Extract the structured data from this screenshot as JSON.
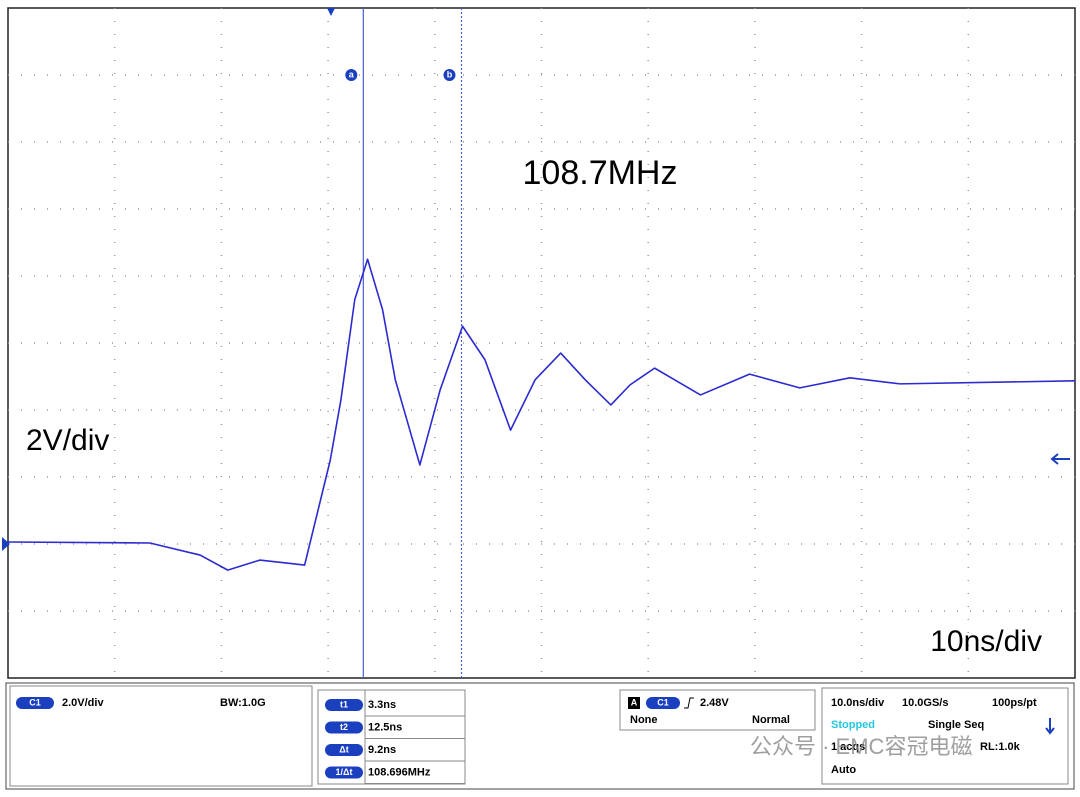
{
  "chart_data": {
    "type": "line",
    "grid": true,
    "color": "#2b2bd0",
    "x": [
      -30,
      -16.7,
      -12,
      -9.4,
      -6.4,
      -2.2,
      0.2,
      1.2,
      2.5,
      3.7,
      5.1,
      6.3,
      8.6,
      10.5,
      12.6,
      14.7,
      17.1,
      19.4,
      21.8,
      24.1,
      26.5,
      28.3,
      30.6,
      34.9,
      39.5,
      44.2,
      48.9,
      53.6,
      70
    ],
    "values": [
      0.06,
      0.03,
      -0.33,
      -0.78,
      -0.48,
      -0.63,
      2.5,
      4.3,
      7.3,
      8.5,
      7.0,
      4.9,
      2.36,
      4.6,
      6.5,
      5.5,
      3.4,
      4.9,
      5.7,
      4.9,
      4.15,
      4.75,
      5.25,
      4.45,
      5.07,
      4.66,
      4.96,
      4.78,
      4.87
    ],
    "xlim": [
      -30,
      70
    ],
    "ylim": [
      -4,
      16
    ],
    "cursors": [
      {
        "marker": "a",
        "name": "t1",
        "value": 3.3,
        "label": "3.3ns"
      },
      {
        "marker": "b",
        "name": "t2",
        "value": 12.5,
        "label": "12.5ns"
      }
    ],
    "delta": {
      "name": "Δt",
      "value": 9.2,
      "label": "9.2ns"
    },
    "inverse": {
      "name": "1/Δt",
      "value": 108.696,
      "label": "108.696MHz"
    },
    "annotations": [
      "108.7MHz",
      "2V/div",
      "10ns/div"
    ]
  },
  "panel": {
    "channel": "C1",
    "scale": "2.0V/div",
    "bandwidth": "BW:1.0G",
    "trigger": {
      "source": "A",
      "channel": "C1",
      "level": "2.48V",
      "coupling": "None",
      "mode": "Normal"
    },
    "acquisition": {
      "timebase": "10.0ns/div",
      "rate": "10.0GS/s",
      "resolution": "100ps/pt",
      "state": "Stopped",
      "sequence": "Single Seq",
      "acqs": "1 acqs",
      "length": "RL:1.0k",
      "auto": "Auto"
    }
  },
  "watermark": "公众号 · EMC容冠电磁"
}
